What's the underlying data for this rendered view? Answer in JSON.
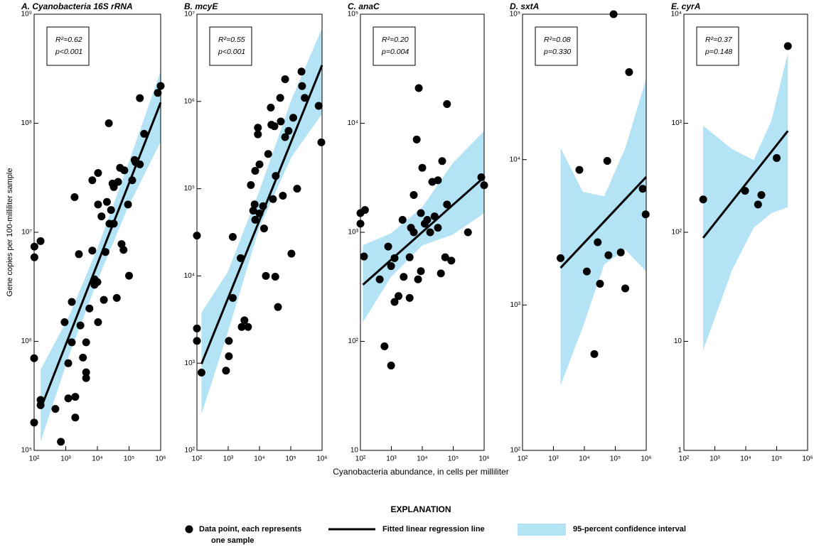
{
  "ylabel": "Gene copies per 100-milliliter sample",
  "xlabel": "Cyanobacteria abundance, in cells per milliliter",
  "explanation": {
    "title": "EXPLANATION",
    "items": [
      {
        "label_lines": [
          "Data point, each represents",
          "one sample"
        ]
      },
      {
        "label_lines": [
          "Fitted linear regression line"
        ]
      },
      {
        "label_lines": [
          "95-percent confidence interval"
        ]
      }
    ]
  },
  "chart_data": [
    {
      "type": "scatter",
      "title": "A. Cyanobacteria 16S rRNA",
      "annotations": [
        "R²=0.62",
        "p<0.001"
      ],
      "log_x": true,
      "log_y": true,
      "color": "#000000",
      "ci_color": "#b3e3f5",
      "xlim": [
        100,
        1000000
      ],
      "ylim": [
        100000,
        1000000000
      ],
      "xticks": [
        {
          "value": 100,
          "label": "10²"
        },
        {
          "value": 1000,
          "label": "10³"
        },
        {
          "value": 10000,
          "label": "10⁴"
        },
        {
          "value": 100000,
          "label": "10⁵"
        },
        {
          "value": 1000000,
          "label": "10⁶"
        }
      ],
      "yticks": [
        {
          "value": 100000,
          "label": "10⁵"
        },
        {
          "value": 1000000,
          "label": "10⁶"
        },
        {
          "value": 10000000,
          "label": "10⁷"
        },
        {
          "value": 100000000,
          "label": "10⁸"
        },
        {
          "value": 1000000000,
          "label": "10⁹"
        }
      ],
      "x": [
        102,
        102,
        160,
        100,
        100,
        160,
        160,
        470,
        700,
        920,
        1200,
        1200,
        1550,
        1550,
        1900,
        2000,
        2000,
        2600,
        2900,
        3500,
        4400,
        4400,
        4400,
        5600,
        6900,
        6900,
        8100,
        8100,
        10000,
        10500,
        10500,
        10500,
        13500,
        16000,
        18000,
        20000,
        23000,
        24000,
        27000,
        30000,
        33000,
        33000,
        41000,
        45000,
        52000,
        58000,
        67000,
        71000,
        93000,
        100000,
        126000,
        150000,
        160000,
        220000,
        220000,
        300000,
        810000,
        1000000
      ],
      "values": [
        7400000,
        5900000,
        8300000,
        700000,
        180000,
        290000,
        260000,
        240000,
        120000,
        1500000,
        630000,
        300000,
        980000,
        2300000,
        21000000,
        310000,
        200000,
        6300000,
        1400000,
        710000,
        520000,
        460000,
        980000,
        2000000,
        6800000,
        30000000,
        3700000,
        3300000,
        3500000,
        35000000,
        18000000,
        1500000,
        14000000,
        2400000,
        6600000,
        19000000,
        100000000,
        12000000,
        16000000,
        28000000,
        12000000,
        26000000,
        2500000,
        29000000,
        39000000,
        7800000,
        6900000,
        37000000,
        18000000,
        4000000,
        30000000,
        46000000,
        44000000,
        42000000,
        170000000,
        80000000,
        190000000,
        220000000
      ],
      "fit_x": [
        160,
        1000000
      ],
      "fit_values": [
        240000,
        155000000
      ],
      "ci_x": [
        160,
        1270,
        10000,
        93000,
        1000000
      ],
      "ci_upper": [
        550000,
        1700000,
        7100000,
        42000000,
        300000000
      ],
      "ci_lower": [
        120000,
        740000,
        3600000,
        17000000,
        68000000
      ]
    },
    {
      "type": "scatter",
      "title": "B. mcyE",
      "annotations": [
        "R²=0.55",
        "p<0.001"
      ],
      "log_x": true,
      "log_y": true,
      "color": "#000000",
      "ci_color": "#b3e3f5",
      "xlim": [
        100,
        1000000
      ],
      "ylim": [
        100,
        10000000
      ],
      "xticks": [
        {
          "value": 100,
          "label": "10²"
        },
        {
          "value": 1000,
          "label": "10³"
        },
        {
          "value": 10000,
          "label": "10⁴"
        },
        {
          "value": 100000,
          "label": "10⁵"
        },
        {
          "value": 1000000,
          "label": "10⁶"
        }
      ],
      "yticks": [
        {
          "value": 100,
          "label": "10²"
        },
        {
          "value": 1000,
          "label": "10³"
        },
        {
          "value": 10000,
          "label": "10⁴"
        },
        {
          "value": 100000,
          "label": "10⁵"
        },
        {
          "value": 1000000,
          "label": "10⁶"
        },
        {
          "value": 10000000,
          "label": "10⁷"
        }
      ],
      "x": [
        100,
        100,
        100,
        140,
        850,
        1050,
        1050,
        1400,
        1400,
        2500,
        2700,
        3300,
        4300,
        5300,
        6300,
        7000,
        7300,
        7300,
        8900,
        8900,
        10000,
        10000,
        13000,
        14000,
        16000,
        19000,
        23000,
        24000,
        27000,
        30000,
        32000,
        33000,
        39000,
        46000,
        48000,
        56000,
        66000,
        66000,
        85000,
        105000,
        120000,
        160000,
        220000,
        230000,
        280000,
        780000,
        950000
      ],
      "values": [
        29000,
        2500,
        1800,
        780,
        820,
        1800,
        1200,
        28000,
        5600,
        16000,
        2600,
        3100,
        2600,
        110000,
        56000,
        66000,
        160000,
        44000,
        500000,
        420000,
        190000,
        52000,
        63000,
        35000,
        10000,
        250000,
        850000,
        540000,
        76000,
        520000,
        9800,
        140000,
        4400,
        1100000,
        590000,
        83000,
        1800000,
        390000,
        460000,
        18000,
        650000,
        100000,
        2200000,
        1500000,
        1100000,
        890000,
        340000
      ],
      "fit_x": [
        140,
        1000000
      ],
      "fit_values": [
        980,
        2600000
      ],
      "ci_x": [
        140,
        950,
        10000,
        105000,
        1000000
      ],
      "ci_upper": [
        3800,
        11000,
        95000,
        1050000,
        6900000
      ],
      "ci_lower": [
        260,
        2200,
        36000,
        230000,
        720000
      ]
    },
    {
      "type": "scatter",
      "title": "C. anaC",
      "annotations": [
        "R²=0.20",
        "p=0.004"
      ],
      "log_x": true,
      "log_y": true,
      "color": "#000000",
      "ci_color": "#b3e3f5",
      "xlim": [
        100,
        1000000
      ],
      "ylim": [
        10,
        100000
      ],
      "xticks": [
        {
          "value": 100,
          "label": "10²"
        },
        {
          "value": 1000,
          "label": "10³"
        },
        {
          "value": 10000,
          "label": "10⁴"
        },
        {
          "value": 100000,
          "label": "10⁵"
        },
        {
          "value": 1000000,
          "label": "10⁶"
        }
      ],
      "yticks": [
        10,
        {
          "value": 100,
          "label": "10²"
        },
        {
          "value": 1000,
          "label": "10³"
        },
        {
          "value": 10000,
          "label": "10⁴"
        },
        {
          "value": 100000,
          "label": "10⁵"
        }
      ],
      "x": [
        100,
        100,
        140,
        130,
        420,
        600,
        790,
        980,
        980,
        1270,
        1270,
        1700,
        2300,
        2500,
        3900,
        3900,
        4300,
        5300,
        5300,
        6600,
        7300,
        7700,
        9000,
        9000,
        10000,
        12000,
        14500,
        18000,
        21000,
        25000,
        32000,
        32000,
        40000,
        44000,
        55000,
        63000,
        63000,
        87000,
        300000,
        810000,
        1000000
      ],
      "values": [
        1200,
        1500,
        1600,
        600,
        370,
        90,
        740,
        490,
        60,
        580,
        230,
        260,
        1300,
        390,
        590,
        250,
        1100,
        2200,
        1000,
        7100,
        370,
        21000,
        1500,
        440,
        3900,
        1200,
        1300,
        1000,
        2900,
        1400,
        1100,
        3000,
        420,
        4500,
        590,
        1800,
        15000,
        550,
        1000,
        3200,
        2700
      ],
      "fit_x": [
        120,
        1000000
      ],
      "fit_values": [
        330,
        3200
      ],
      "ci_x": [
        120,
        980,
        10000,
        96000,
        1000000
      ],
      "ci_upper": [
        760,
        980,
        1700,
        4300,
        8500
      ],
      "ci_lower": [
        150,
        390,
        760,
        950,
        1500
      ]
    },
    {
      "type": "scatter",
      "title": "D. sxtA",
      "annotations": [
        "R²=0.08",
        "p=0.330"
      ],
      "log_x": true,
      "log_y": true,
      "color": "#000000",
      "ci_color": "#b3e3f5",
      "xlim": [
        100,
        1000000
      ],
      "ylim": [
        100,
        100000
      ],
      "xticks": [
        {
          "value": 100,
          "label": "10²"
        },
        {
          "value": 1000,
          "label": "10³"
        },
        {
          "value": 10000,
          "label": "10⁴"
        },
        {
          "value": 100000,
          "label": "10⁵"
        },
        {
          "value": 1000000,
          "label": "10⁶"
        }
      ],
      "yticks": [
        {
          "value": 100,
          "label": "10²"
        },
        {
          "value": 1000,
          "label": "10³"
        },
        {
          "value": 10000,
          "label": "10⁴"
        },
        {
          "value": 100000,
          "label": "10⁵"
        }
      ],
      "x": [
        1700,
        6900,
        12000,
        21000,
        27000,
        32000,
        55000,
        60000,
        88000,
        150000,
        210000,
        280000,
        770000,
        960000
      ],
      "values": [
        2100,
        8500,
        1700,
        460,
        2700,
        1400,
        9800,
        2200,
        100000,
        2300,
        1300,
        40000,
        6300,
        4200
      ],
      "fit_x": [
        1700,
        1000000
      ],
      "fit_values": [
        1800,
        7600
      ],
      "ci_x": [
        1700,
        9000,
        44000,
        210000,
        1000000
      ],
      "ci_upper": [
        12000,
        6000,
        5600,
        12000,
        36000
      ],
      "ci_lower": [
        280,
        710,
        1900,
        2400,
        1700
      ]
    },
    {
      "type": "scatter",
      "title": "E. cyrA",
      "annotations": [
        "R²=0.37",
        "p=0.148"
      ],
      "log_x": true,
      "log_y": true,
      "color": "#000000",
      "ci_color": "#b3e3f5",
      "xlim": [
        100,
        1000000
      ],
      "ylim": [
        1,
        10000
      ],
      "xticks": [
        {
          "value": 100,
          "label": "10²"
        },
        {
          "value": 1000,
          "label": "10³"
        },
        {
          "value": 10000,
          "label": "10⁴"
        },
        {
          "value": 100000,
          "label": "10⁵"
        },
        {
          "value": 1000000,
          "label": "10⁶"
        }
      ],
      "yticks": [
        1,
        10,
        {
          "value": 100,
          "label": "10²"
        },
        {
          "value": 1000,
          "label": "10³"
        },
        {
          "value": 10000,
          "label": "10⁴"
        }
      ],
      "x": [
        420,
        9500,
        25000,
        32000,
        100000,
        230000
      ],
      "values": [
        200,
        240,
        180,
        220,
        480,
        5100
      ],
      "fit_x": [
        420,
        230000
      ],
      "fit_values": [
        89,
        850
      ],
      "ci_x": [
        420,
        3600,
        18000,
        67000,
        230000
      ],
      "ci_upper": [
        950,
        580,
        460,
        1050,
        4400
      ],
      "ci_lower": [
        8.3,
        45,
        110,
        150,
        170
      ]
    }
  ]
}
